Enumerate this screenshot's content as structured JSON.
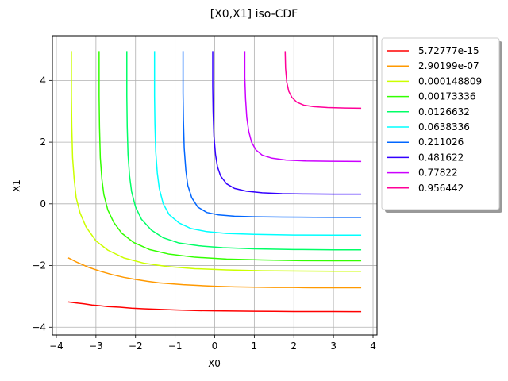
{
  "chart_data": {
    "type": "line",
    "title": "[X0,X1] iso-CDF",
    "xlabel": "X0",
    "ylabel": "X1",
    "xlim": [
      -4.1,
      4.1
    ],
    "ylim": [
      -4.25,
      5.45
    ],
    "xticks": [
      -4,
      -3,
      -2,
      -1,
      0,
      1,
      2,
      3,
      4
    ],
    "yticks": [
      -4,
      -2,
      0,
      2,
      4
    ],
    "grid": true,
    "legend_position": "outside-right-top",
    "series": [
      {
        "name": "5.72777e-15",
        "color": "#ff0000",
        "x": [
          -3.7,
          -3.5,
          -3.3,
          -3.1,
          -2.9,
          -2.7,
          -2.4,
          -2.1,
          -1.8,
          -1.4,
          -1.0,
          -0.5,
          0.0,
          0.5,
          1.0,
          1.5,
          2.0,
          2.5,
          3.0,
          3.5,
          3.7
        ],
        "y": [
          -3.18,
          -3.21,
          -3.24,
          -3.28,
          -3.3,
          -3.33,
          -3.35,
          -3.38,
          -3.4,
          -3.42,
          -3.44,
          -3.46,
          -3.47,
          -3.475,
          -3.48,
          -3.485,
          -3.49,
          -3.49,
          -3.49,
          -3.495,
          -3.495
        ]
      },
      {
        "name": "2.90199e-07",
        "color": "#ff9900",
        "x": [
          -3.7,
          -3.5,
          -3.2,
          -2.9,
          -2.6,
          -2.3,
          -2.0,
          -1.7,
          -1.4,
          -1.1,
          -0.8,
          -0.5,
          0.0,
          0.5,
          1.0,
          1.5,
          2.0,
          2.5,
          3.0,
          3.5,
          3.7
        ],
        "y": [
          -1.75,
          -1.88,
          -2.05,
          -2.18,
          -2.29,
          -2.38,
          -2.45,
          -2.51,
          -2.56,
          -2.59,
          -2.62,
          -2.64,
          -2.67,
          -2.69,
          -2.7,
          -2.71,
          -2.71,
          -2.72,
          -2.72,
          -2.72,
          -2.72
        ]
      },
      {
        "name": "0.000148809",
        "color": "#ccff00",
        "x": [
          -3.62,
          -3.62,
          -3.61,
          -3.59,
          -3.55,
          -3.5,
          -3.4,
          -3.25,
          -3.0,
          -2.7,
          -2.3,
          -1.8,
          -1.2,
          -0.5,
          0.3,
          1.2,
          2.2,
          3.0,
          3.7
        ],
        "y": [
          4.95,
          3.5,
          2.5,
          1.5,
          0.8,
          0.2,
          -0.3,
          -0.75,
          -1.2,
          -1.5,
          -1.75,
          -1.92,
          -2.03,
          -2.1,
          -2.14,
          -2.17,
          -2.18,
          -2.185,
          -2.185
        ]
      },
      {
        "name": "0.00173336",
        "color": "#33ff00",
        "x": [
          -2.92,
          -2.92,
          -2.91,
          -2.89,
          -2.85,
          -2.8,
          -2.7,
          -2.55,
          -2.35,
          -2.05,
          -1.65,
          -1.15,
          -0.5,
          0.3,
          1.2,
          2.2,
          3.0,
          3.7
        ],
        "y": [
          4.95,
          3.5,
          2.5,
          1.5,
          0.8,
          0.3,
          -0.2,
          -0.6,
          -0.95,
          -1.25,
          -1.48,
          -1.63,
          -1.73,
          -1.79,
          -1.82,
          -1.84,
          -1.845,
          -1.845
        ]
      },
      {
        "name": "0.0126632",
        "color": "#00ff66",
        "x": [
          -2.22,
          -2.22,
          -2.21,
          -2.19,
          -2.15,
          -2.1,
          -2.0,
          -1.85,
          -1.6,
          -1.3,
          -0.9,
          -0.4,
          0.2,
          1.0,
          2.0,
          3.0,
          3.7
        ],
        "y": [
          4.95,
          3.5,
          2.5,
          1.6,
          0.9,
          0.4,
          -0.1,
          -0.5,
          -0.85,
          -1.1,
          -1.27,
          -1.36,
          -1.42,
          -1.46,
          -1.48,
          -1.49,
          -1.49
        ]
      },
      {
        "name": "0.0638336",
        "color": "#00ffff",
        "x": [
          -1.52,
          -1.52,
          -1.51,
          -1.49,
          -1.45,
          -1.4,
          -1.3,
          -1.15,
          -0.9,
          -0.6,
          -0.2,
          0.3,
          1.0,
          2.0,
          3.0,
          3.7
        ],
        "y": [
          4.95,
          3.5,
          2.6,
          1.7,
          1.0,
          0.5,
          0.0,
          -0.35,
          -0.62,
          -0.8,
          -0.9,
          -0.96,
          -0.99,
          -1.01,
          -1.015,
          -1.015
        ]
      },
      {
        "name": "0.211026",
        "color": "#0066ff",
        "x": [
          -0.8,
          -0.8,
          -0.79,
          -0.77,
          -0.73,
          -0.68,
          -0.58,
          -0.43,
          -0.2,
          0.1,
          0.5,
          1.0,
          1.7,
          2.5,
          3.2,
          3.7
        ],
        "y": [
          4.95,
          3.6,
          2.7,
          1.8,
          1.1,
          0.6,
          0.2,
          -0.1,
          -0.28,
          -0.36,
          -0.4,
          -0.42,
          -0.43,
          -0.435,
          -0.44,
          -0.44
        ]
      },
      {
        "name": "0.481622",
        "color": "#3300ff",
        "x": [
          -0.05,
          -0.05,
          -0.04,
          -0.02,
          0.02,
          0.07,
          0.15,
          0.3,
          0.5,
          0.8,
          1.2,
          1.7,
          2.3,
          3.0,
          3.7
        ],
        "y": [
          4.95,
          3.8,
          3.0,
          2.2,
          1.6,
          1.2,
          0.9,
          0.65,
          0.5,
          0.41,
          0.36,
          0.33,
          0.32,
          0.315,
          0.315
        ]
      },
      {
        "name": "0.77822",
        "color": "#cc00ff",
        "x": [
          0.76,
          0.76,
          0.78,
          0.81,
          0.86,
          0.93,
          1.04,
          1.2,
          1.45,
          1.8,
          2.3,
          2.9,
          3.7
        ],
        "y": [
          4.95,
          4.1,
          3.4,
          2.8,
          2.35,
          2.0,
          1.75,
          1.58,
          1.48,
          1.42,
          1.39,
          1.38,
          1.375
        ]
      },
      {
        "name": "0.956442",
        "color": "#ff0099",
        "x": [
          1.78,
          1.79,
          1.82,
          1.87,
          1.95,
          2.07,
          2.25,
          2.5,
          2.85,
          3.3,
          3.7
        ],
        "y": [
          4.95,
          4.4,
          3.95,
          3.65,
          3.45,
          3.3,
          3.2,
          3.15,
          3.12,
          3.105,
          3.1
        ]
      }
    ]
  }
}
